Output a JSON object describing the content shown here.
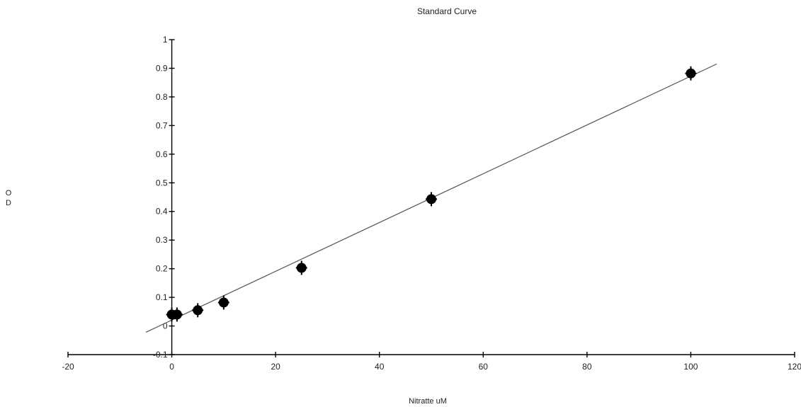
{
  "chart_data": {
    "type": "scatter",
    "title": "Standard Curve",
    "xlabel": "Nitratte uM",
    "ylabel": "O D",
    "xlim": [
      -20,
      120
    ],
    "ylim": [
      -0.1,
      1
    ],
    "x_ticks": [
      "-20",
      "0",
      "20",
      "40",
      "60",
      "80",
      "100",
      "120"
    ],
    "y_ticks": [
      "-0.1",
      "0",
      "0.1",
      "0.2",
      "0.3",
      "0.4",
      "0.5",
      "0.6",
      "0.7",
      "0.8",
      "0.9",
      "1"
    ],
    "grid": false,
    "series": [
      {
        "points": [
          {
            "x": 0,
            "y": 0.04
          },
          {
            "x": 1,
            "y": 0.04
          },
          {
            "x": 5,
            "y": 0.055
          },
          {
            "x": 10,
            "y": 0.082
          },
          {
            "x": 25,
            "y": 0.203
          },
          {
            "x": 50,
            "y": 0.443
          },
          {
            "x": 100,
            "y": 0.882
          }
        ]
      }
    ],
    "trendline": {
      "x": [
        -5,
        105
      ],
      "y": [
        -0.022,
        0.915
      ]
    }
  }
}
